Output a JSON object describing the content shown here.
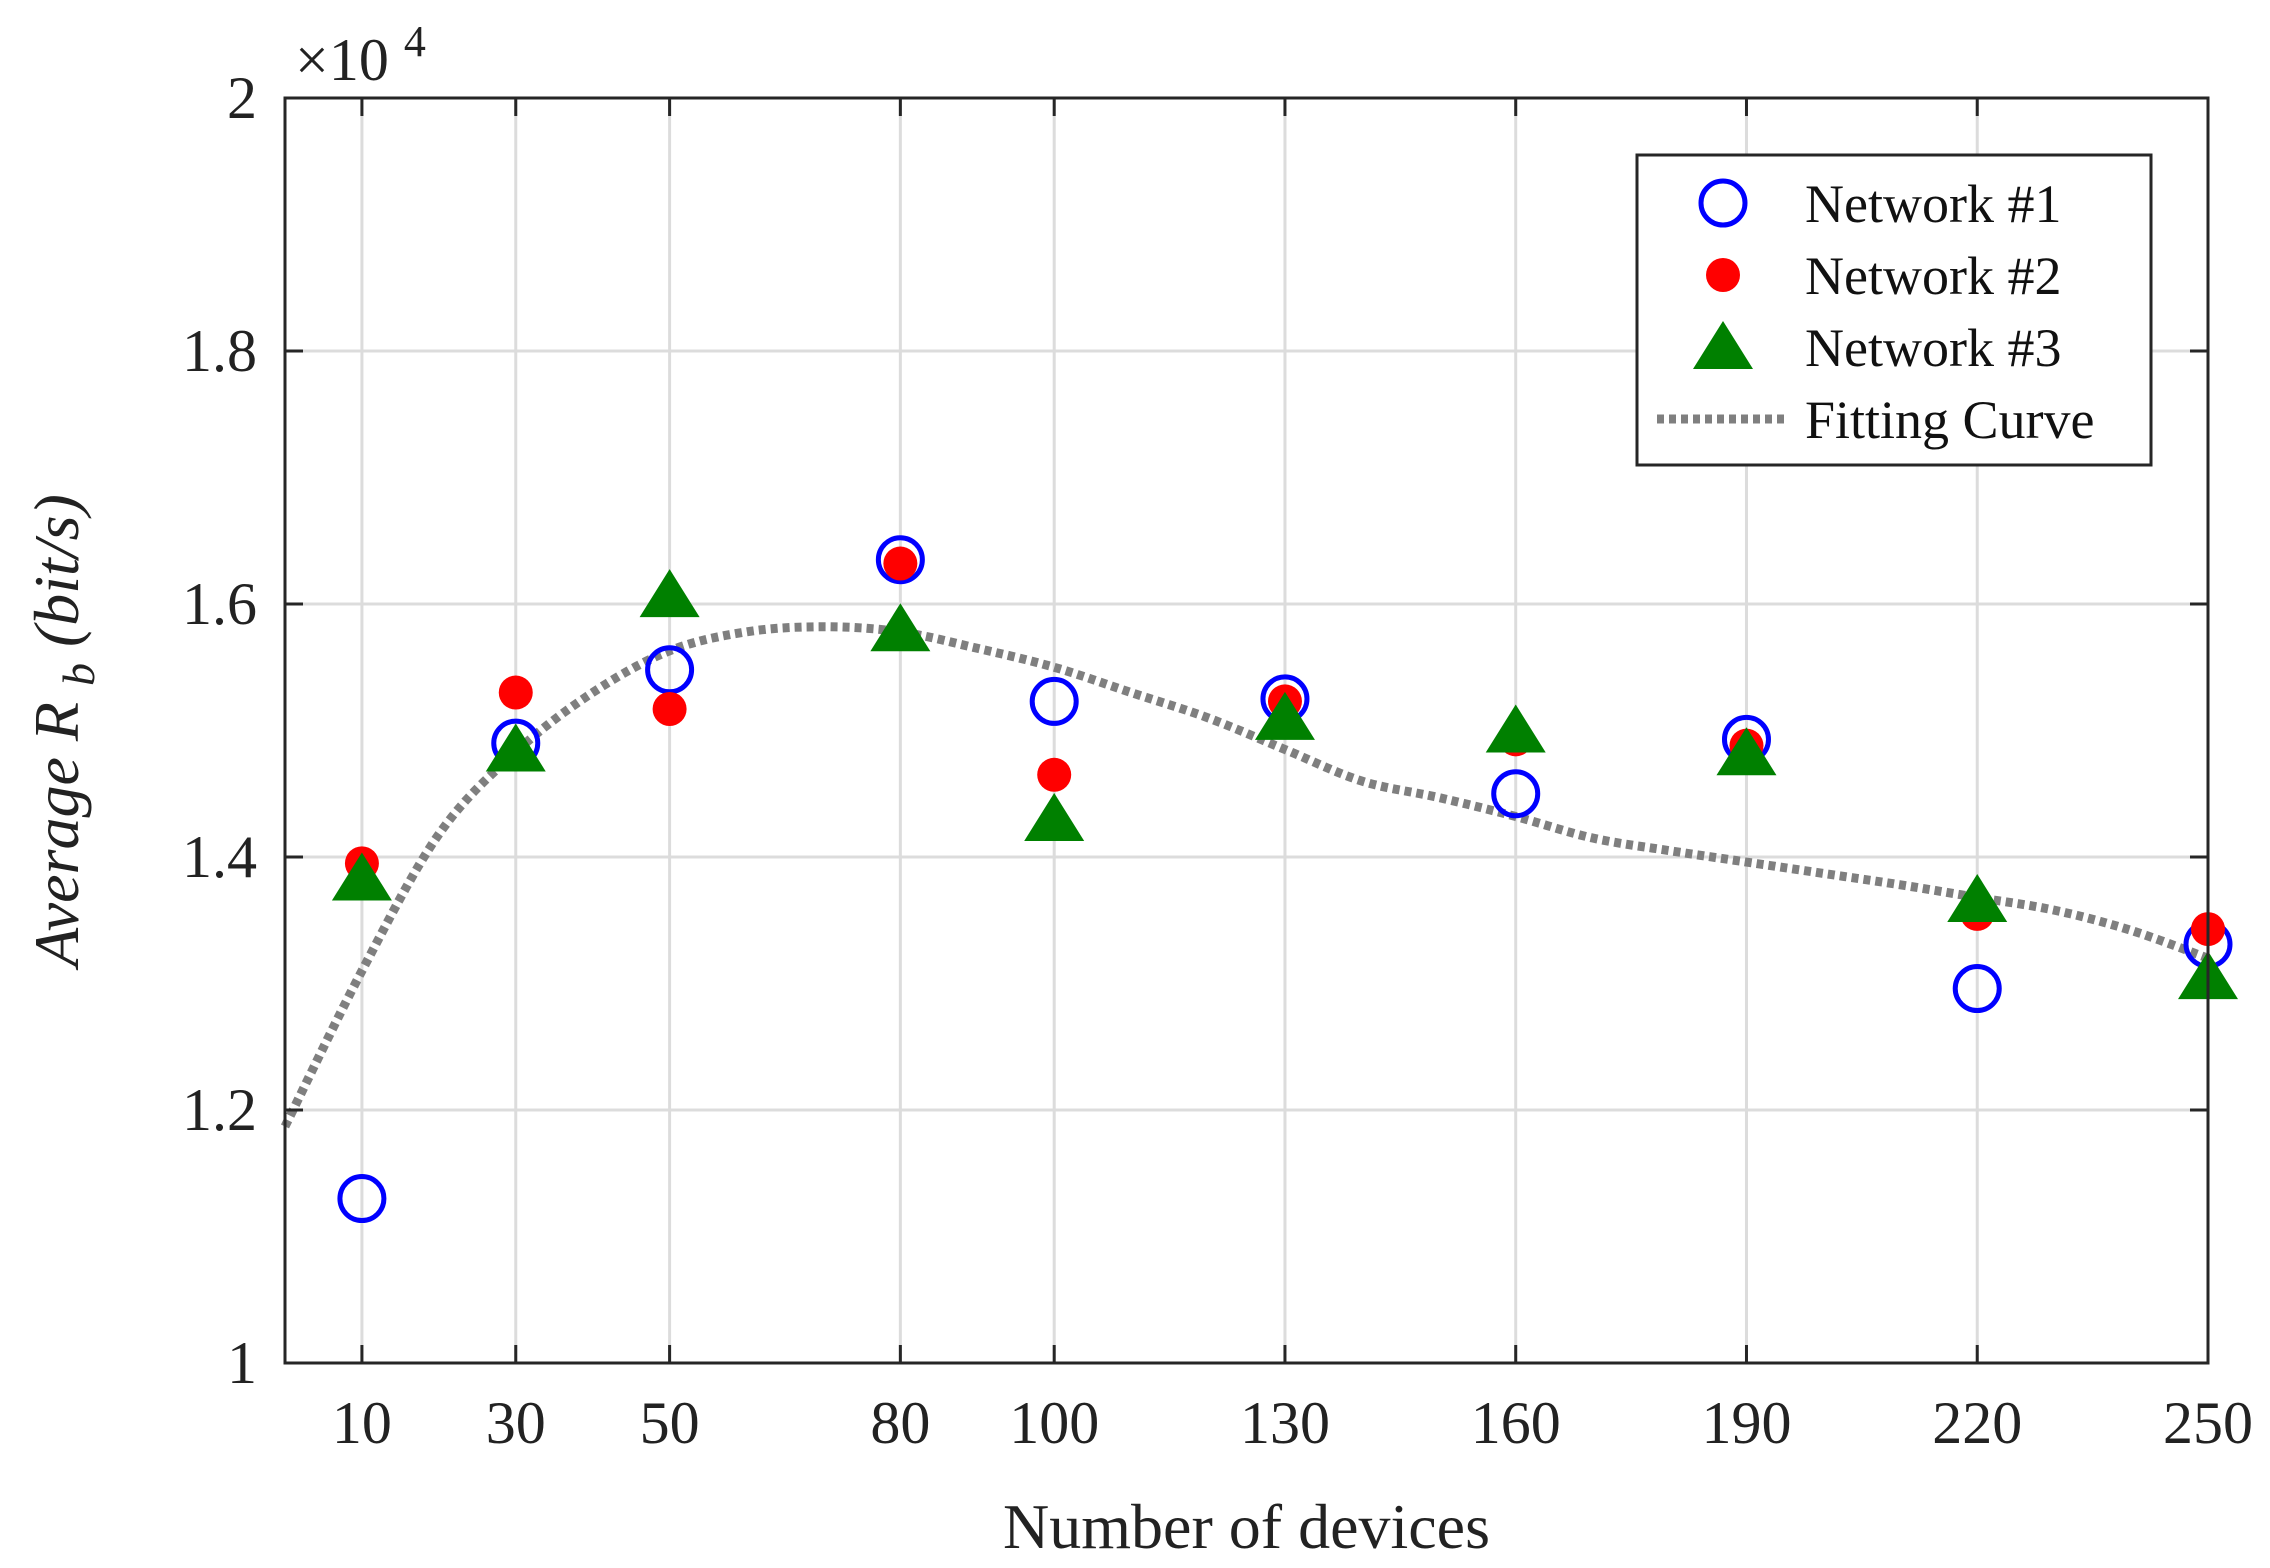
{
  "chart_data": {
    "type": "scatter",
    "title": "",
    "xlabel": "Number of devices",
    "ylabel": {
      "prefix": "Average ",
      "symbol": "R",
      "subscript": "b",
      "unit": " (bit/s)"
    },
    "y_scale_label": "×10",
    "y_scale_exponent": "4",
    "x_categories": [
      10,
      30,
      50,
      80,
      100,
      130,
      160,
      190,
      220,
      250
    ],
    "xlim": [
      0,
      250
    ],
    "ylim": [
      1.0,
      2.0
    ],
    "y_ticks": [
      1,
      1.2,
      1.4,
      1.6,
      1.8,
      2
    ],
    "y_tick_labels": [
      "1",
      "1.2",
      "1.4",
      "1.6",
      "1.8",
      "2"
    ],
    "grid": true,
    "legend_position": "top-right",
    "series": [
      {
        "name": "Network #1",
        "marker": "open-circle",
        "color": "#0000ff",
        "x": [
          10,
          30,
          50,
          80,
          100,
          130,
          160,
          190,
          220,
          250
        ],
        "values": [
          1.13,
          1.49,
          1.548,
          1.635,
          1.523,
          1.525,
          1.45,
          1.493,
          1.296,
          1.331
        ]
      },
      {
        "name": "Network #2",
        "marker": "filled-circle",
        "color": "#ff0000",
        "x": [
          10,
          30,
          50,
          80,
          100,
          130,
          160,
          190,
          220,
          250
        ],
        "values": [
          1.395,
          1.53,
          1.517,
          1.632,
          1.465,
          1.523,
          1.493,
          1.488,
          1.355,
          1.343
        ]
      },
      {
        "name": "Network #3",
        "marker": "filled-triangle",
        "color": "#008000",
        "x": [
          10,
          30,
          50,
          80,
          100,
          130,
          160,
          190,
          220,
          250
        ],
        "values": [
          1.383,
          1.485,
          1.607,
          1.58,
          1.43,
          1.51,
          1.5,
          1.482,
          1.366,
          1.305
        ]
      },
      {
        "name": "Fitting Curve",
        "marker": "dotted-line",
        "color": "#7f7f7f",
        "x": [
          0,
          10,
          20,
          30,
          40,
          50,
          60,
          70,
          80,
          90,
          100,
          110,
          120,
          130,
          140,
          150,
          160,
          170,
          180,
          190,
          200,
          210,
          220,
          230,
          240,
          250
        ],
        "values": [
          1.187,
          1.31,
          1.418,
          1.483,
          1.53,
          1.563,
          1.578,
          1.582,
          1.578,
          1.565,
          1.55,
          1.53,
          1.51,
          1.485,
          1.46,
          1.447,
          1.432,
          1.415,
          1.405,
          1.396,
          1.387,
          1.378,
          1.368,
          1.358,
          1.342,
          1.32
        ]
      }
    ]
  }
}
